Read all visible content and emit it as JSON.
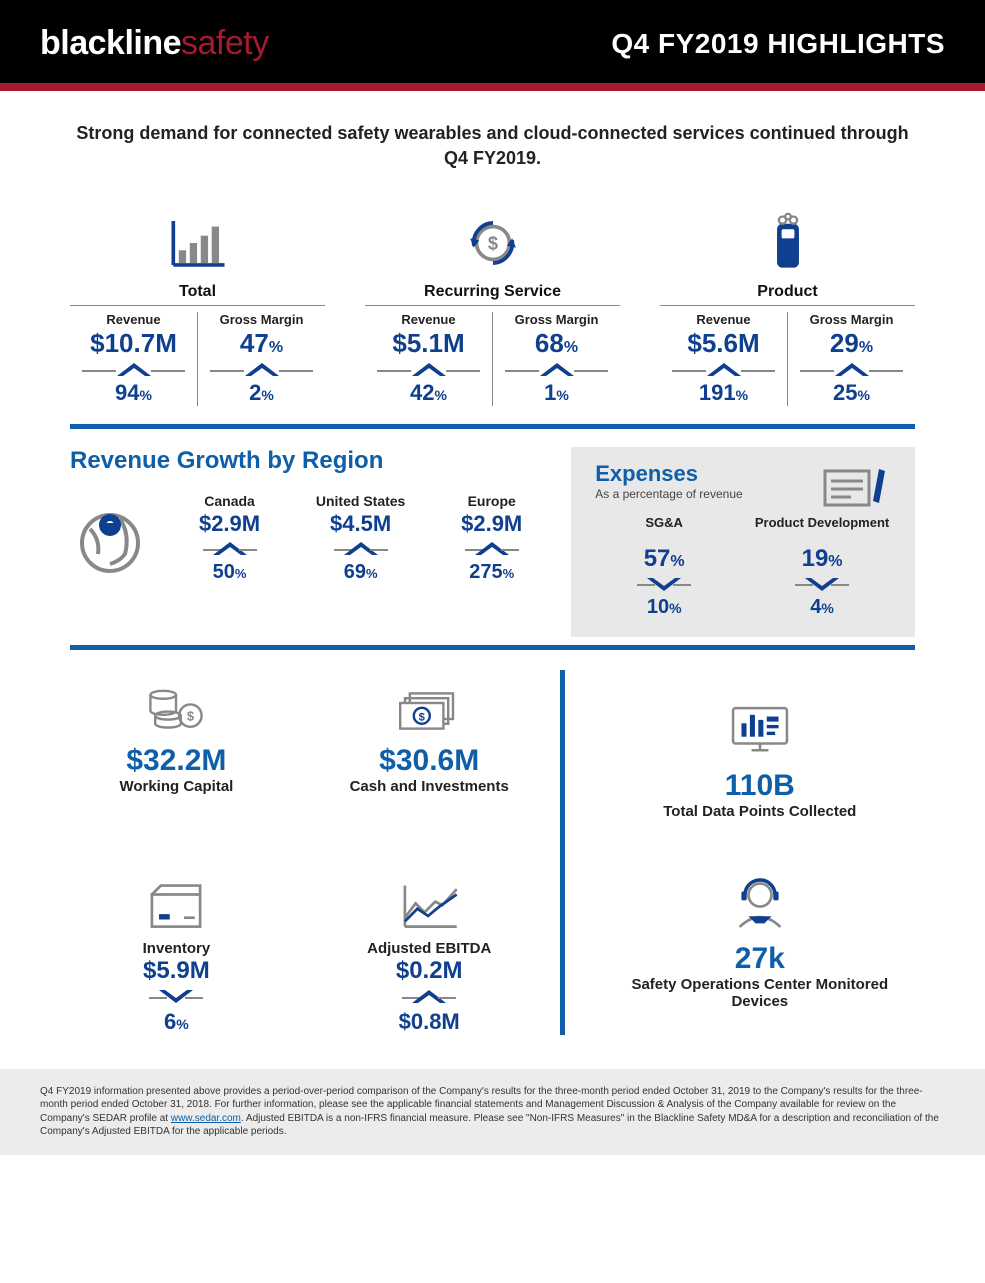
{
  "header": {
    "logo_bold": "blackline",
    "logo_light": "safety",
    "title": "Q4 FY2019 HIGHLIGHTS"
  },
  "subhead": "Strong demand for connected safety wearables and cloud-connected services continued through Q4 FY2019.",
  "colors": {
    "primary": "#0f3f8f",
    "accent": "#0f5fa8",
    "brand_red": "#a6192e",
    "gray_stroke": "#888888",
    "expenses_bg": "#e8e8e8"
  },
  "top_metrics": [
    {
      "title": "Total",
      "icon": "bar-chart",
      "pairs": [
        {
          "label": "Revenue",
          "value": "$10.7M",
          "direction": "up",
          "change": "94",
          "change_unit": "%"
        },
        {
          "label": "Gross Margin",
          "value": "47",
          "unit": "%",
          "direction": "up",
          "change": "2",
          "change_unit": "%"
        }
      ]
    },
    {
      "title": "Recurring Service",
      "icon": "dollar-cycle",
      "pairs": [
        {
          "label": "Revenue",
          "value": "$5.1M",
          "direction": "up",
          "change": "42",
          "change_unit": "%"
        },
        {
          "label": "Gross Margin",
          "value": "68",
          "unit": "%",
          "direction": "up",
          "change": "1",
          "change_unit": "%"
        }
      ]
    },
    {
      "title": "Product",
      "icon": "device",
      "pairs": [
        {
          "label": "Revenue",
          "value": "$5.6M",
          "direction": "up",
          "change": "191",
          "change_unit": "%"
        },
        {
          "label": "Gross Margin",
          "value": "29",
          "unit": "%",
          "direction": "up",
          "change": "25",
          "change_unit": "%"
        }
      ]
    }
  ],
  "regions": {
    "title": "Revenue Growth by Region",
    "items": [
      {
        "label": "Canada",
        "value": "$2.9M",
        "direction": "up",
        "change": "50",
        "change_unit": "%"
      },
      {
        "label": "United States",
        "value": "$4.5M",
        "direction": "up",
        "change": "69",
        "change_unit": "%"
      },
      {
        "label": "Europe",
        "value": "$2.9M",
        "direction": "up",
        "change": "275",
        "change_unit": "%"
      }
    ]
  },
  "expenses": {
    "title": "Expenses",
    "subtitle": "As a percentage of revenue",
    "items": [
      {
        "label": "SG&A",
        "value": "57",
        "unit": "%",
        "direction": "down",
        "change": "10",
        "change_unit": "%"
      },
      {
        "label": "Product Development",
        "value": "19",
        "unit": "%",
        "direction": "down",
        "change": "4",
        "change_unit": "%"
      }
    ]
  },
  "bottom_left": [
    {
      "icon": "coins",
      "value": "$32.2M",
      "label": "Working Capital"
    },
    {
      "icon": "cash",
      "value": "$30.6M",
      "label": "Cash and Investments"
    },
    {
      "icon": "box",
      "value": "$5.9M",
      "label": "Inventory",
      "direction": "down",
      "change": "6",
      "change_unit": "%"
    },
    {
      "icon": "line-chart",
      "value": "$0.2M",
      "label": "Adjusted EBITDA",
      "direction": "up",
      "change": "$0.8M"
    }
  ],
  "bottom_right": [
    {
      "icon": "monitor",
      "value": "110B",
      "label": "Total Data Points Collected"
    },
    {
      "icon": "operator",
      "value": "27k",
      "label": "Safety Operations Center Monitored Devices"
    }
  ],
  "footnote": {
    "text1": "Q4 FY2019 information presented above provides a period-over-period comparison of the Company's results for the three-month period ended October 31, 2019 to the Company's results for the three-month period ended October 31, 2018. For further information, please see the applicable financial statements and Management Discussion & Analysis of the Company available for review on the Company's SEDAR profile at ",
    "link": "www.sedar.com",
    "text2": ". Adjusted EBITDA is a non-IFRS financial measure. Please see \"Non-IFRS Measures\" in the Blackline Safety MD&A for a description and reconciliation of the Company's Adjusted EBITDA for the applicable periods."
  }
}
